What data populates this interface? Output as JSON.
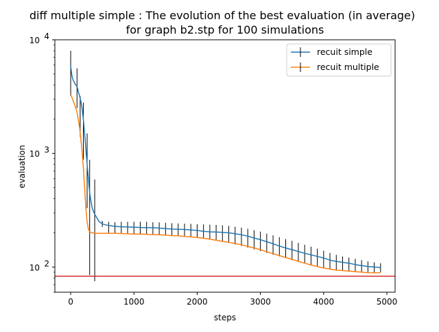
{
  "chart_data": {
    "type": "line",
    "title_line1": "diff multiple simple : The evolution of the best evaluation (in average)",
    "title_line2": "for graph b2.stp for 100 simulations",
    "xlabel": "steps",
    "ylabel": "evaluation",
    "xlim": [
      -250,
      5130
    ],
    "ylim": [
      60,
      10000
    ],
    "yscale": "log",
    "grid": false,
    "legend_position": "top-right",
    "x_ticks": [
      0,
      1000,
      2000,
      3000,
      4000,
      5000
    ],
    "x_tick_labels": [
      "0",
      "1000",
      "2000",
      "3000",
      "4000",
      "5000"
    ],
    "y_ticks": [
      100,
      1000,
      10000
    ],
    "y_tick_labels": [
      {
        "base": "10",
        "exp": "2"
      },
      {
        "base": "10",
        "exp": "3"
      },
      {
        "base": "10",
        "exp": "4"
      }
    ],
    "reference_line": {
      "y": 83,
      "color": "#d62728"
    },
    "series": [
      {
        "name": "recuit simple",
        "color": "#1f77b4",
        "x": [
          0,
          20,
          40,
          60,
          80,
          100,
          120,
          140,
          160,
          180,
          200,
          220,
          240,
          260,
          280,
          300,
          320,
          340,
          360,
          380,
          400,
          450,
          500,
          550,
          600,
          700,
          800,
          900,
          1000,
          1100,
          1200,
          1300,
          1400,
          1500,
          1600,
          1700,
          1800,
          1900,
          2000,
          2100,
          2200,
          2300,
          2400,
          2500,
          2600,
          2700,
          2800,
          2900,
          3000,
          3100,
          3200,
          3300,
          3400,
          3500,
          3600,
          3700,
          3800,
          3900,
          4000,
          4100,
          4200,
          4300,
          4400,
          4500,
          4600,
          4700,
          4800,
          4900
        ],
        "y": [
          5900,
          4800,
          4400,
          4200,
          4000,
          3900,
          3500,
          3200,
          2900,
          2500,
          2000,
          1500,
          1100,
          800,
          600,
          450,
          380,
          330,
          310,
          290,
          280,
          250,
          240,
          235,
          232,
          228,
          226,
          225,
          224,
          223,
          222,
          222,
          220,
          218,
          216,
          215,
          214,
          212,
          210,
          206,
          204,
          203,
          202,
          200,
          196,
          192,
          187,
          180,
          174,
          167,
          160,
          153,
          147,
          142,
          137,
          132,
          128,
          124,
          120,
          115,
          112,
          110,
          108,
          105,
          103,
          101,
          100,
          99
        ]
      },
      {
        "name": "recuit multiple",
        "color": "#ff7f0e",
        "x": [
          0,
          20,
          40,
          60,
          80,
          100,
          120,
          140,
          160,
          180,
          200,
          220,
          240,
          260,
          280,
          300,
          320,
          340,
          360,
          380,
          400,
          450,
          500,
          550,
          600,
          700,
          800,
          900,
          1000,
          1100,
          1200,
          1300,
          1400,
          1500,
          1600,
          1700,
          1800,
          1900,
          2000,
          2100,
          2200,
          2300,
          2400,
          2500,
          2600,
          2700,
          2800,
          2900,
          3000,
          3100,
          3200,
          3300,
          3400,
          3500,
          3600,
          3700,
          3800,
          3900,
          4000,
          4100,
          4200,
          4300,
          4400,
          4500,
          4600,
          4700,
          4800,
          4900
        ],
        "y": [
          3300,
          3100,
          2900,
          2700,
          2500,
          2300,
          2000,
          1700,
          1350,
          1050,
          750,
          500,
          330,
          250,
          215,
          205,
          202,
          200,
          199,
          198,
          198,
          198,
          198,
          198,
          198,
          198,
          197,
          196,
          195,
          195,
          194,
          193,
          192,
          191,
          189,
          188,
          186,
          184,
          182,
          179,
          176,
          172,
          168,
          165,
          161,
          157,
          152,
          147,
          142,
          136,
          131,
          126,
          121,
          117,
          112,
          108,
          104,
          101,
          98,
          96,
          94,
          93,
          92,
          91,
          90,
          89,
          89,
          89
        ]
      }
    ],
    "error_bars": {
      "color": "#000000",
      "x": [
        0,
        100,
        150,
        200,
        260,
        300,
        380,
        500,
        600,
        700,
        800,
        900,
        1000,
        1100,
        1200,
        1300,
        1400,
        1500,
        1600,
        1700,
        1800,
        1900,
        2000,
        2100,
        2200,
        2300,
        2400,
        2500,
        2600,
        2700,
        2800,
        2900,
        3000,
        3100,
        3200,
        3300,
        3400,
        3500,
        3600,
        3700,
        3800,
        3900,
        4000,
        4100,
        4200,
        4300,
        4400,
        4500,
        4600,
        4700,
        4800,
        4900
      ],
      "low": [
        3200,
        2500,
        1400,
        880,
        330,
        85,
        75,
        225,
        200,
        200,
        198,
        196,
        196,
        195,
        195,
        194,
        193,
        191,
        189,
        188,
        186,
        184,
        181,
        178,
        175,
        171,
        167,
        163,
        158,
        153,
        148,
        143,
        138,
        133,
        128,
        124,
        120,
        115,
        112,
        108,
        104,
        101,
        98,
        96,
        94,
        93,
        92,
        91,
        90,
        90,
        89,
        90
      ],
      "high": [
        8000,
        5600,
        3200,
        2800,
        1500,
        880,
        590,
        255,
        250,
        248,
        250,
        250,
        250,
        250,
        250,
        248,
        247,
        245,
        243,
        242,
        241,
        240,
        238,
        237,
        236,
        235,
        233,
        230,
        226,
        222,
        217,
        211,
        205,
        197,
        190,
        183,
        176,
        170,
        163,
        157,
        151,
        145,
        139,
        133,
        128,
        124,
        121,
        118,
        115,
        112,
        110,
        108
      ]
    }
  }
}
